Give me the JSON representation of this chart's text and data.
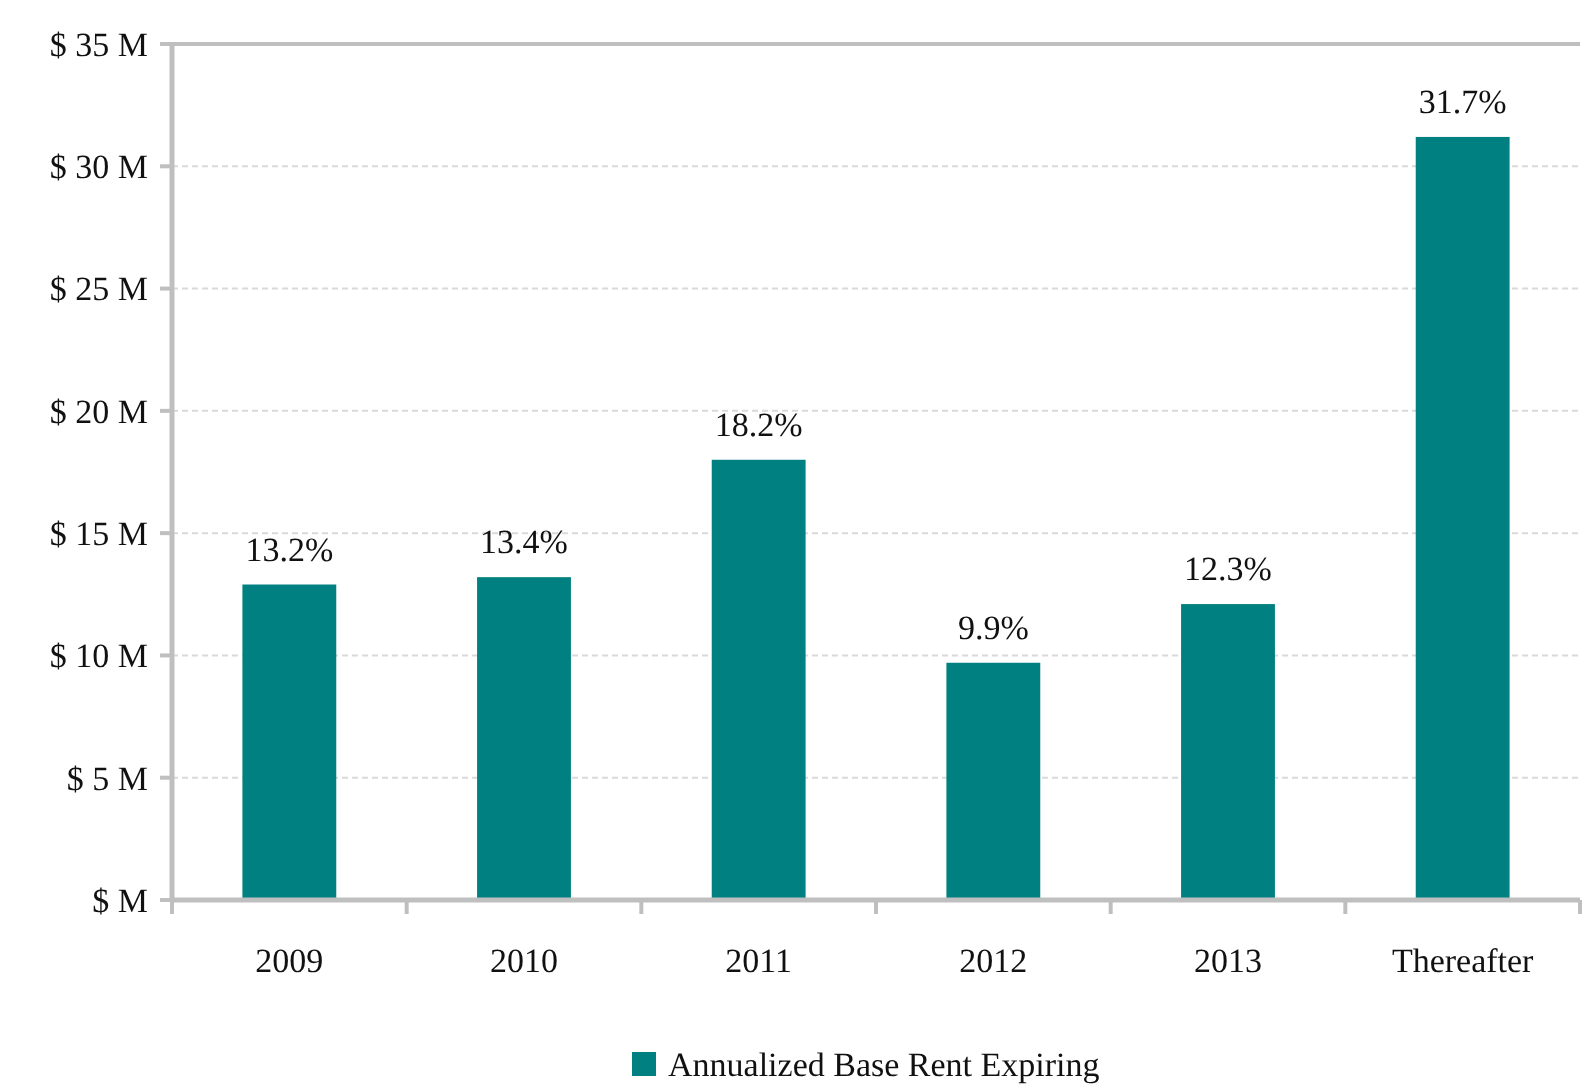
{
  "chart_data": {
    "type": "bar",
    "categories": [
      "2009",
      "2010",
      "2011",
      "2012",
      "2013",
      "Thereafter"
    ],
    "series": [
      {
        "name": "Annualized Base Rent Expiring",
        "color": "#008080",
        "values": [
          12.9,
          13.2,
          18.0,
          9.7,
          12.1,
          31.2
        ]
      }
    ],
    "annotations": [
      {
        "text": "13.2%",
        "x": "2009",
        "y": 12.9
      },
      {
        "text": "13.4%",
        "x": "2010",
        "y": 13.2
      },
      {
        "text": "18.2%",
        "x": "2011",
        "y": 18.0
      },
      {
        "text": "9.9%",
        "x": "2012",
        "y": 9.7
      },
      {
        "text": "12.3%",
        "x": "2013",
        "y": 12.1
      },
      {
        "text": "31.7%",
        "x": "Thereafter",
        "y": 31.2
      }
    ],
    "ylim": [
      0,
      35
    ],
    "yticks": [
      {
        "value": 0,
        "label": "$  M"
      },
      {
        "value": 5,
        "label": "$ 5 M"
      },
      {
        "value": 10,
        "label": "$ 10 M"
      },
      {
        "value": 15,
        "label": "$ 15 M"
      },
      {
        "value": 20,
        "label": "$ 20 M"
      },
      {
        "value": 25,
        "label": "$ 25 M"
      },
      {
        "value": 30,
        "label": "$ 30 M"
      },
      {
        "value": 35,
        "label": "$ 35 M"
      }
    ],
    "grid": "y",
    "legend": "bottom"
  }
}
